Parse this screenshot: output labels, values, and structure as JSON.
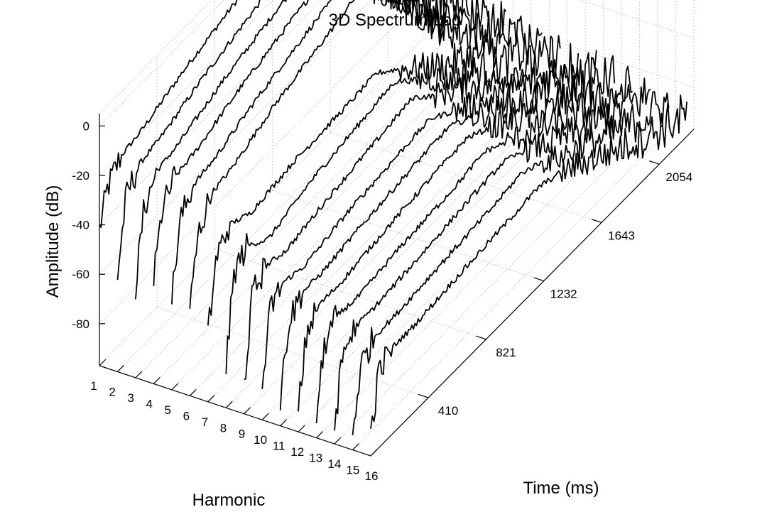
{
  "chart_data": {
    "type": "line",
    "title": "3D Spectrum Log",
    "xlabel": "Harmonic",
    "ylabel": "Time (ms)",
    "zlabel": "Amplitude (dB)",
    "harmonic_ticks": [
      "1",
      "2",
      "3",
      "4",
      "5",
      "6",
      "7",
      "8",
      "9",
      "10",
      "11",
      "12",
      "13",
      "14",
      "15",
      "16"
    ],
    "time_ticks": [
      "410",
      "821",
      "1232",
      "1643",
      "2054"
    ],
    "time_tick_values": [
      410,
      821,
      1232,
      1643,
      2054
    ],
    "amplitude_ticks": [
      "0",
      "-20",
      "-40",
      "-60",
      "-80"
    ],
    "amplitude_tick_values": [
      0,
      -20,
      -40,
      -60,
      -80
    ],
    "time_range": [
      0,
      2300
    ],
    "amplitude_range": [
      -97,
      5
    ],
    "grid": true,
    "time_samples_ms": [
      0,
      60,
      150,
      300,
      600,
      1000,
      1200,
      1350,
      1500,
      1650,
      1800,
      1950,
      2100,
      2250
    ],
    "series": [
      {
        "harmonic": 1,
        "values": [
          -42,
          -28,
          -21,
          -19,
          -12,
          -5,
          -1,
          0,
          -12,
          -25,
          -40,
          -50,
          -58,
          -60
        ]
      },
      {
        "harmonic": 2,
        "values": [
          -58,
          -30,
          -22,
          -20,
          -13,
          -6,
          -2,
          -2,
          -14,
          -28,
          -42,
          -55,
          -62,
          -66
        ]
      },
      {
        "harmonic": 3,
        "values": [
          -60,
          -32,
          -22,
          -20,
          -13,
          -6,
          -3,
          -4,
          -18,
          -32,
          -46,
          -58,
          -65,
          -70
        ]
      },
      {
        "harmonic": 4,
        "values": [
          -55,
          -30,
          -22,
          -20,
          -13,
          -6,
          -3,
          -2,
          -16,
          -30,
          -44,
          -56,
          -64,
          -68
        ]
      },
      {
        "harmonic": 5,
        "values": [
          -60,
          -32,
          -23,
          -21,
          -14,
          -7,
          -4,
          -5,
          -20,
          -34,
          -48,
          -60,
          -68,
          -72
        ]
      },
      {
        "harmonic": 6,
        "values": [
          -62,
          -35,
          -24,
          -22,
          -14,
          -7,
          -3,
          -6,
          -22,
          -38,
          -52,
          -62,
          -70,
          -74
        ]
      },
      {
        "harmonic": 7,
        "values": [
          -70,
          -42,
          -34,
          -38,
          -35,
          -34,
          -33,
          -40,
          -48,
          -56,
          -62,
          -68,
          -72,
          -76
        ]
      },
      {
        "harmonic": 8,
        "values": [
          -80,
          -45,
          -40,
          -46,
          -40,
          -36,
          -34,
          -42,
          -50,
          -58,
          -64,
          -70,
          -74,
          -78
        ]
      },
      {
        "harmonic": 9,
        "values": [
          -85,
          -52,
          -46,
          -48,
          -44,
          -40,
          -38,
          -46,
          -52,
          -60,
          -66,
          -70,
          -75,
          -80
        ]
      },
      {
        "harmonic": 10,
        "values": [
          -84,
          -55,
          -50,
          -52,
          -48,
          -45,
          -44,
          -50,
          -56,
          -62,
          -66,
          -72,
          -76,
          -80
        ]
      },
      {
        "harmonic": 11,
        "values": [
          -86,
          -58,
          -52,
          -52,
          -49,
          -46,
          -45,
          -50,
          -56,
          -62,
          -68,
          -72,
          -78,
          -82
        ]
      },
      {
        "harmonic": 12,
        "values": [
          -88,
          -60,
          -54,
          -54,
          -51,
          -48,
          -47,
          -52,
          -58,
          -64,
          -70,
          -74,
          -78,
          -82
        ]
      },
      {
        "harmonic": 13,
        "values": [
          -88,
          -62,
          -56,
          -57,
          -54,
          -52,
          -50,
          -55,
          -60,
          -66,
          -70,
          -76,
          -80,
          -84
        ]
      },
      {
        "harmonic": 14,
        "values": [
          -90,
          -64,
          -58,
          -58,
          -56,
          -53,
          -52,
          -56,
          -62,
          -67,
          -72,
          -76,
          -80,
          -85
        ]
      },
      {
        "harmonic": 15,
        "values": [
          -90,
          -66,
          -60,
          -60,
          -58,
          -56,
          -54,
          -58,
          -64,
          -68,
          -74,
          -78,
          -82,
          -86
        ]
      },
      {
        "harmonic": 16,
        "values": [
          -88,
          -66,
          -62,
          -62,
          -60,
          -58,
          -57,
          -60,
          -65,
          -70,
          -75,
          -80,
          -84,
          -88
        ]
      }
    ]
  }
}
